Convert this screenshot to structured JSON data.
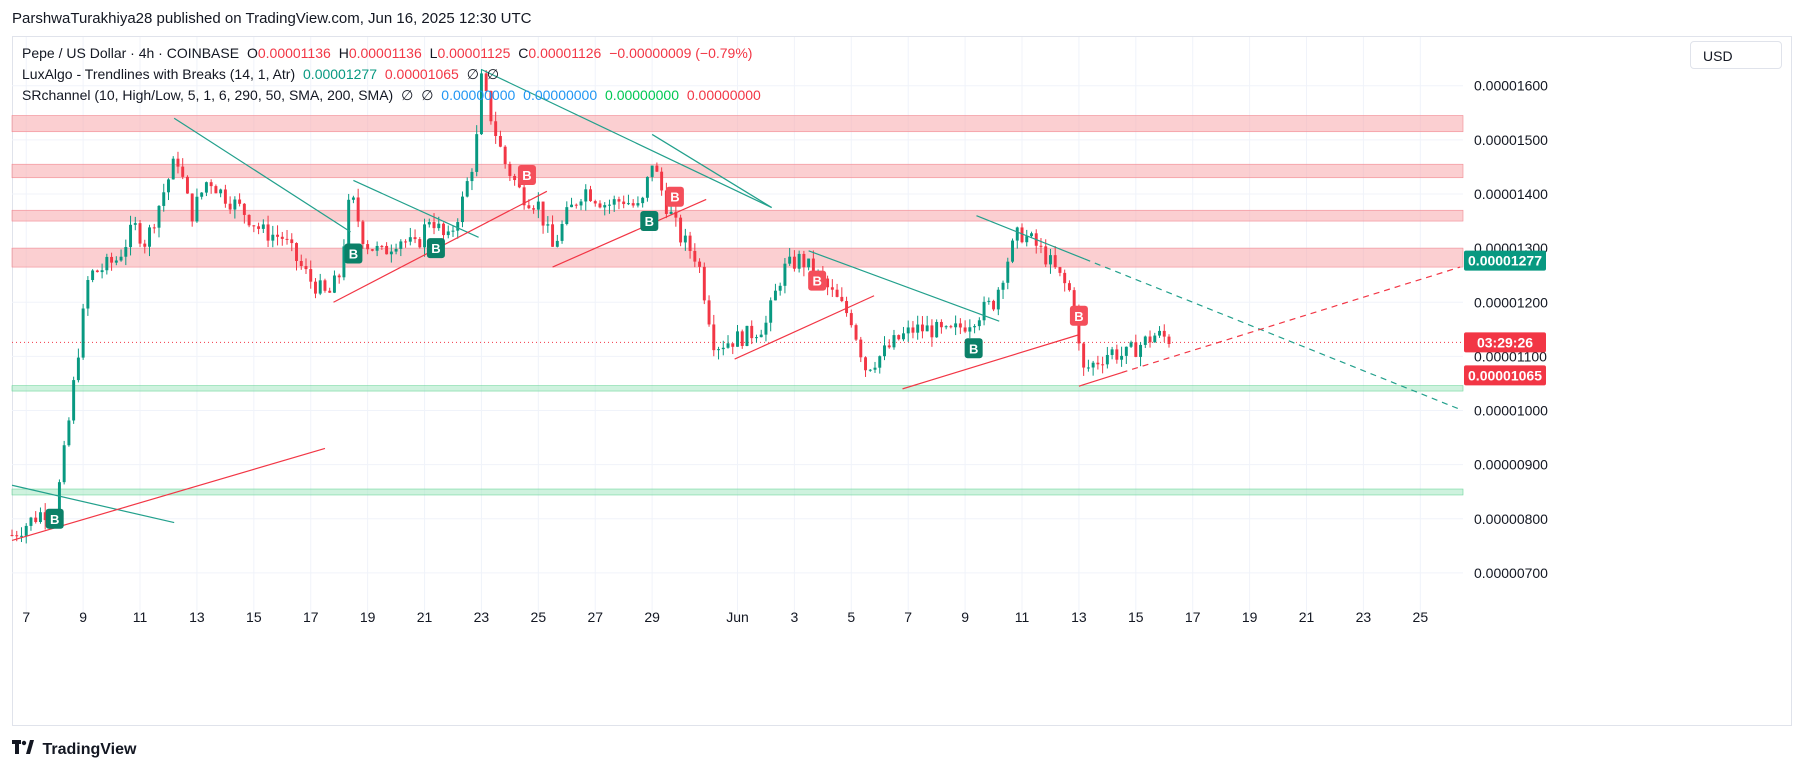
{
  "header": {
    "published": "ParshwaTurakhiya28 published on TradingView.com, Jun 16, 2025 12:30 UTC"
  },
  "legend": {
    "symbol": "Pepe / US Dollar · 4h · COINBASE",
    "o_label": "O",
    "o_value": "0.00001136",
    "h_label": "H",
    "h_value": "0.00001136",
    "l_label": "L",
    "l_value": "0.00001125",
    "c_label": "C",
    "c_value": "0.00001126",
    "change": "−0.00000009 (−0.79%)",
    "ind1_name": "LuxAlgo - Trendlines with Breaks (14, 1, Atr)",
    "ind1_v1": "0.00001277",
    "ind1_v2": "0.00001065",
    "ind1_v3": "∅",
    "ind1_v4": "∅",
    "ind2_name": "SRchannel (10, High/Low, 5, 1, 6, 290, 50, SMA, 200, SMA)",
    "ind2_v1": "∅",
    "ind2_v2": "∅",
    "ind2_v3": "0.00000000",
    "ind2_v4": "0.00000000",
    "ind2_v5": "0.00000000",
    "ind2_v6": "0.00000000"
  },
  "currency_button": "USD",
  "footer": {
    "brand": "TradingView"
  },
  "colors": {
    "up": "#089981",
    "down": "#f23645",
    "resistance_zone": "#f7a8ac",
    "support_zone": "#a5e8c3",
    "trend_down": "#22a08c",
    "trend_up": "#f23645"
  },
  "chart_data": {
    "type": "candlestick",
    "ylim": [
      6.5e-06,
      1.69e-05
    ],
    "y_ticks": [
      7e-06,
      8e-06,
      9e-06,
      1e-05,
      1.1e-05,
      1.2e-05,
      1.3e-05,
      1.4e-05,
      1.5e-05,
      1.6e-05
    ],
    "y_tick_labels": [
      "0.00000700",
      "0.00000800",
      "0.00000900",
      "0.00001000",
      "0.00001100",
      "0.00001200",
      "0.00001300",
      "0.00001400",
      "0.00001500",
      "0.00001600"
    ],
    "x_tick_labels": [
      "7",
      "9",
      "11",
      "13",
      "15",
      "17",
      "19",
      "21",
      "23",
      "25",
      "27",
      "29",
      "Jun",
      "3",
      "5",
      "7",
      "9",
      "11",
      "13",
      "15",
      "17",
      "19",
      "21",
      "23",
      "25"
    ],
    "x_tick_days": [
      7,
      9,
      11,
      13,
      15,
      17,
      19,
      21,
      23,
      25,
      27,
      29,
      32,
      34,
      36,
      38,
      40,
      42,
      44,
      46,
      48,
      50,
      52,
      54,
      56
    ],
    "x_day_range": [
      6.5,
      57.5
    ],
    "price_labels": [
      {
        "text": "0.00001277",
        "value": 1.277e-05,
        "color": "#089981"
      },
      {
        "text": "03:29:26",
        "value": 1.126e-05,
        "color": "#f23645"
      },
      {
        "text": "0.00001065",
        "value": 1.065e-05,
        "color": "#f23645"
      }
    ],
    "current_price": 1.126e-05,
    "zones": [
      {
        "type": "resistance",
        "from": 1.515e-05,
        "to": 1.545e-05
      },
      {
        "type": "resistance",
        "from": 1.43e-05,
        "to": 1.455e-05
      },
      {
        "type": "resistance",
        "from": 1.35e-05,
        "to": 1.37e-05
      },
      {
        "type": "resistance",
        "from": 1.265e-05,
        "to": 1.3e-05
      },
      {
        "type": "support",
        "from": 1.036e-05,
        "to": 1.046e-05
      },
      {
        "type": "support",
        "from": 8.44e-06,
        "to": 8.55e-06
      }
    ],
    "trendlines": [
      {
        "kind": "down",
        "x1": 6.5,
        "y1": 8.62e-06,
        "x2": 12.2,
        "y2": 7.93e-06
      },
      {
        "kind": "up",
        "x1": 6.5,
        "y1": 7.6e-06,
        "x2": 17.5,
        "y2": 9.3e-06
      },
      {
        "kind": "down",
        "x1": 12.2,
        "y1": 1.54e-05,
        "x2": 18.4,
        "y2": 1.33e-05
      },
      {
        "kind": "down",
        "x1": 18.5,
        "y1": 1.425e-05,
        "x2": 22.9,
        "y2": 1.32e-05
      },
      {
        "kind": "up",
        "x1": 17.8,
        "y1": 1.2e-05,
        "x2": 25.3,
        "y2": 1.405e-05
      },
      {
        "kind": "down",
        "x1": 23.0,
        "y1": 1.63e-05,
        "x2": 33.2,
        "y2": 1.375e-05
      },
      {
        "kind": "up",
        "x1": 25.5,
        "y1": 1.265e-05,
        "x2": 30.9,
        "y2": 1.39e-05
      },
      {
        "kind": "down",
        "x1": 29.0,
        "y1": 1.51e-05,
        "x2": 33.2,
        "y2": 1.375e-05
      },
      {
        "kind": "up",
        "x1": 31.9,
        "y1": 1.095e-05,
        "x2": 36.8,
        "y2": 1.212e-05
      },
      {
        "kind": "down",
        "x1": 34.5,
        "y1": 1.295e-05,
        "x2": 41.2,
        "y2": 1.165e-05
      },
      {
        "kind": "up",
        "x1": 37.8,
        "y1": 1.04e-05,
        "x2": 44.0,
        "y2": 1.14e-05
      },
      {
        "kind": "down",
        "x1": 40.4,
        "y1": 1.36e-05,
        "x2": 44.2,
        "y2": 1.28e-05
      },
      {
        "kind": "down_dashed",
        "x1": 44.2,
        "y1": 1.28e-05,
        "x2": 57.4,
        "y2": 1.002e-05
      },
      {
        "kind": "up",
        "x1": 44.0,
        "y1": 1.045e-05,
        "x2": 45.5,
        "y2": 1.07e-05
      },
      {
        "kind": "up_dashed",
        "x1": 45.5,
        "y1": 1.07e-05,
        "x2": 57.4,
        "y2": 1.265e-05
      }
    ],
    "markers": [
      {
        "label": "B",
        "type": "buy",
        "day": 8.0,
        "price": 8e-06
      },
      {
        "label": "B",
        "type": "buy",
        "day": 18.5,
        "price": 1.29e-05
      },
      {
        "label": "B",
        "type": "buy",
        "day": 21.4,
        "price": 1.3e-05
      },
      {
        "label": "B",
        "type": "sell",
        "day": 24.6,
        "price": 1.435e-05
      },
      {
        "label": "B",
        "type": "buy",
        "day": 28.9,
        "price": 1.35e-05
      },
      {
        "label": "B",
        "type": "sell",
        "day": 29.8,
        "price": 1.395e-05
      },
      {
        "label": "B",
        "type": "sell",
        "day": 34.8,
        "price": 1.24e-05
      },
      {
        "label": "B",
        "type": "buy",
        "day": 40.3,
        "price": 1.115e-05
      },
      {
        "label": "B",
        "type": "sell",
        "day": 44.0,
        "price": 1.175e-05
      }
    ],
    "price_path": [
      [
        6.5,
        7.7e-06
      ],
      [
        7.0,
        7.9e-06
      ],
      [
        7.5,
        8.1e-06
      ],
      [
        8.0,
        8.2e-06
      ],
      [
        8.2,
        8.7e-06
      ],
      [
        8.5,
        9.8e-06
      ],
      [
        8.8,
        1.1e-05
      ],
      [
        9.2,
        1.25e-05
      ],
      [
        9.6,
        1.26e-05
      ],
      [
        10.2,
        1.28e-05
      ],
      [
        10.8,
        1.34e-05
      ],
      [
        11.2,
        1.31e-05
      ],
      [
        11.8,
        1.4e-05
      ],
      [
        12.3,
        1.47e-05
      ],
      [
        12.8,
        1.36e-05
      ],
      [
        13.4,
        1.43e-05
      ],
      [
        13.9,
        1.4e-05
      ],
      [
        14.6,
        1.37e-05
      ],
      [
        15.3,
        1.33e-05
      ],
      [
        16.0,
        1.32e-05
      ],
      [
        16.6,
        1.27e-05
      ],
      [
        17.0,
        1.24e-05
      ],
      [
        17.6,
        1.21e-05
      ],
      [
        18.0,
        1.25e-05
      ],
      [
        18.4,
        1.4e-05
      ],
      [
        18.9,
        1.31e-05
      ],
      [
        19.5,
        1.29e-05
      ],
      [
        20.1,
        1.32e-05
      ],
      [
        20.7,
        1.3e-05
      ],
      [
        21.2,
        1.36e-05
      ],
      [
        21.8,
        1.31e-05
      ],
      [
        22.3,
        1.38e-05
      ],
      [
        22.8,
        1.48e-05
      ],
      [
        23.0,
        1.61e-05
      ],
      [
        23.4,
        1.53e-05
      ],
      [
        23.8,
        1.46e-05
      ],
      [
        24.4,
        1.4e-05
      ],
      [
        25.0,
        1.38e-05
      ],
      [
        25.5,
        1.3e-05
      ],
      [
        26.0,
        1.36e-05
      ],
      [
        26.6,
        1.41e-05
      ],
      [
        27.4,
        1.38e-05
      ],
      [
        28.0,
        1.39e-05
      ],
      [
        28.6,
        1.37e-05
      ],
      [
        29.0,
        1.46e-05
      ],
      [
        29.5,
        1.38e-05
      ],
      [
        30.0,
        1.32e-05
      ],
      [
        30.6,
        1.28e-05
      ],
      [
        31.2,
        1.12e-05
      ],
      [
        31.8,
        1.13e-05
      ],
      [
        32.4,
        1.14e-05
      ],
      [
        33.0,
        1.16e-05
      ],
      [
        33.6,
        1.26e-05
      ],
      [
        34.2,
        1.28e-05
      ],
      [
        34.8,
        1.25e-05
      ],
      [
        35.4,
        1.21e-05
      ],
      [
        36.0,
        1.17e-05
      ],
      [
        36.5,
        1.08e-05
      ],
      [
        37.0,
        1.1e-05
      ],
      [
        37.6,
        1.13e-05
      ],
      [
        38.2,
        1.15e-05
      ],
      [
        38.8,
        1.15e-05
      ],
      [
        39.4,
        1.14e-05
      ],
      [
        40.0,
        1.16e-05
      ],
      [
        40.5,
        1.18e-05
      ],
      [
        41.0,
        1.2e-05
      ],
      [
        41.5,
        1.28e-05
      ],
      [
        41.9,
        1.33e-05
      ],
      [
        42.4,
        1.31e-05
      ],
      [
        42.9,
        1.28e-05
      ],
      [
        43.4,
        1.24e-05
      ],
      [
        43.8,
        1.21e-05
      ],
      [
        44.1,
        1.07e-05
      ],
      [
        44.6,
        1.09e-05
      ],
      [
        45.1,
        1.11e-05
      ],
      [
        45.6,
        1.1e-05
      ],
      [
        46.1,
        1.12e-05
      ],
      [
        46.7,
        1.14e-05
      ],
      [
        47.3,
        1.13e-05
      ]
    ]
  }
}
